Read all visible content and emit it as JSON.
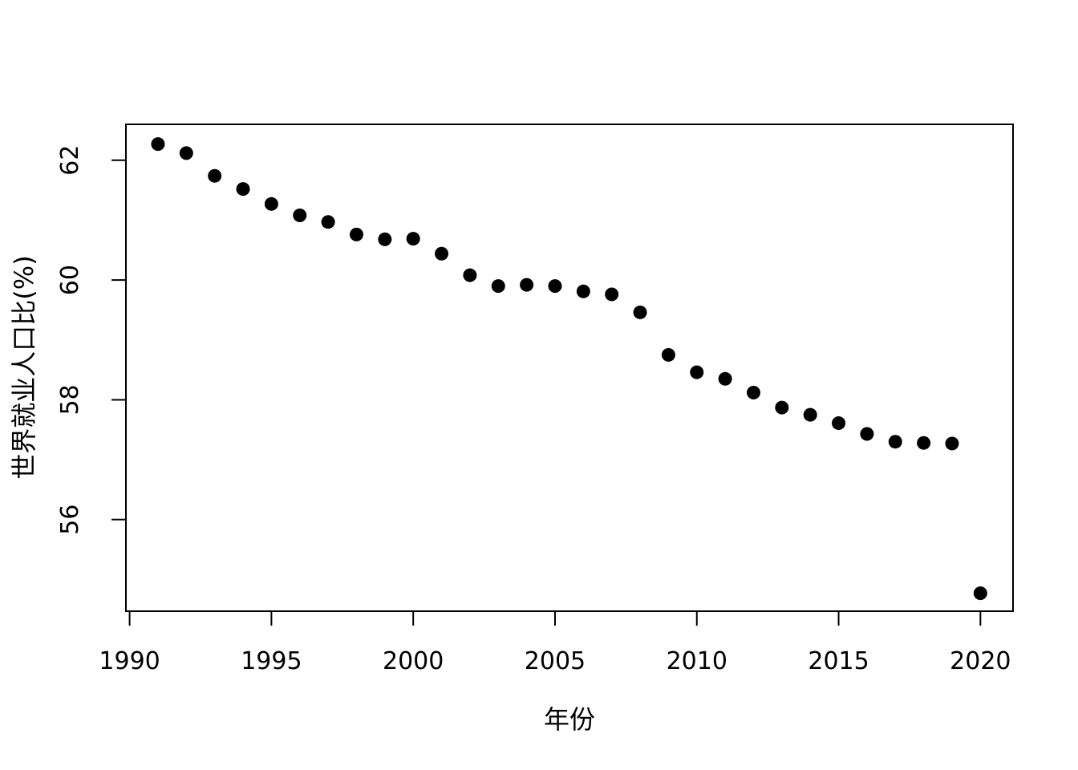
{
  "figure": {
    "background": "#ffffff",
    "axis_color": "#000000",
    "point_color": "#000000"
  },
  "chart_data": {
    "type": "scatter",
    "title": "",
    "xlabel": "年份",
    "ylabel": "世界就业人口比(%)",
    "x": [
      1991,
      1992,
      1993,
      1994,
      1995,
      1996,
      1997,
      1998,
      1999,
      2000,
      2001,
      2002,
      2003,
      2004,
      2005,
      2006,
      2007,
      2008,
      2009,
      2010,
      2011,
      2012,
      2013,
      2014,
      2015,
      2016,
      2017,
      2018,
      2019,
      2020
    ],
    "y": [
      62.27,
      62.12,
      61.74,
      61.52,
      61.27,
      61.08,
      60.97,
      60.76,
      60.68,
      60.69,
      60.44,
      60.08,
      59.9,
      59.92,
      59.9,
      59.81,
      59.76,
      59.46,
      58.75,
      58.46,
      58.35,
      58.12,
      57.87,
      57.75,
      57.61,
      57.43,
      57.3,
      57.28,
      57.27,
      54.77
    ],
    "xticks": [
      1990,
      1995,
      2000,
      2005,
      2010,
      2015,
      2020
    ],
    "yticks": [
      56,
      58,
      60,
      62
    ],
    "xtick_labels": [
      "1990",
      "1995",
      "2000",
      "2005",
      "2010",
      "2015",
      "2020"
    ],
    "ytick_labels": [
      "56",
      "58",
      "60",
      "62"
    ],
    "xlim": [
      1989.87,
      2021.15
    ],
    "ylim": [
      54.47,
      62.6
    ],
    "grid": false,
    "legend": null,
    "marker": "filled-circle"
  }
}
